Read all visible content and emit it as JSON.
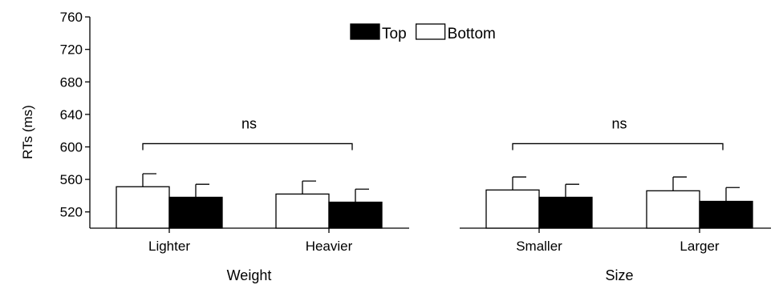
{
  "chart_data": {
    "type": "bar",
    "ylabel": "RTs (ms)",
    "ylim": [
      500,
      760
    ],
    "yticks": [
      520,
      560,
      600,
      640,
      680,
      720,
      760
    ],
    "legend": {
      "placement": "top-center",
      "entries": [
        {
          "name": "Top",
          "color": "#000000"
        },
        {
          "name": "Bottom",
          "color": "#ffffff"
        }
      ]
    },
    "panels": [
      {
        "group_label": "Weight",
        "categories": [
          "Lighter",
          "Heavier"
        ],
        "series": [
          {
            "name": "Bottom",
            "values": [
              551,
              542
            ],
            "error": [
              16,
              16
            ]
          },
          {
            "name": "Top",
            "values": [
              538,
              532
            ],
            "error": [
              16,
              16
            ]
          }
        ],
        "annotation": "ns"
      },
      {
        "group_label": "Size",
        "categories": [
          "Smaller",
          "Larger"
        ],
        "series": [
          {
            "name": "Bottom",
            "values": [
              547,
              546
            ],
            "error": [
              16,
              17
            ]
          },
          {
            "name": "Top",
            "values": [
              538,
              533
            ],
            "error": [
              16,
              17
            ]
          }
        ],
        "annotation": "ns"
      }
    ]
  }
}
